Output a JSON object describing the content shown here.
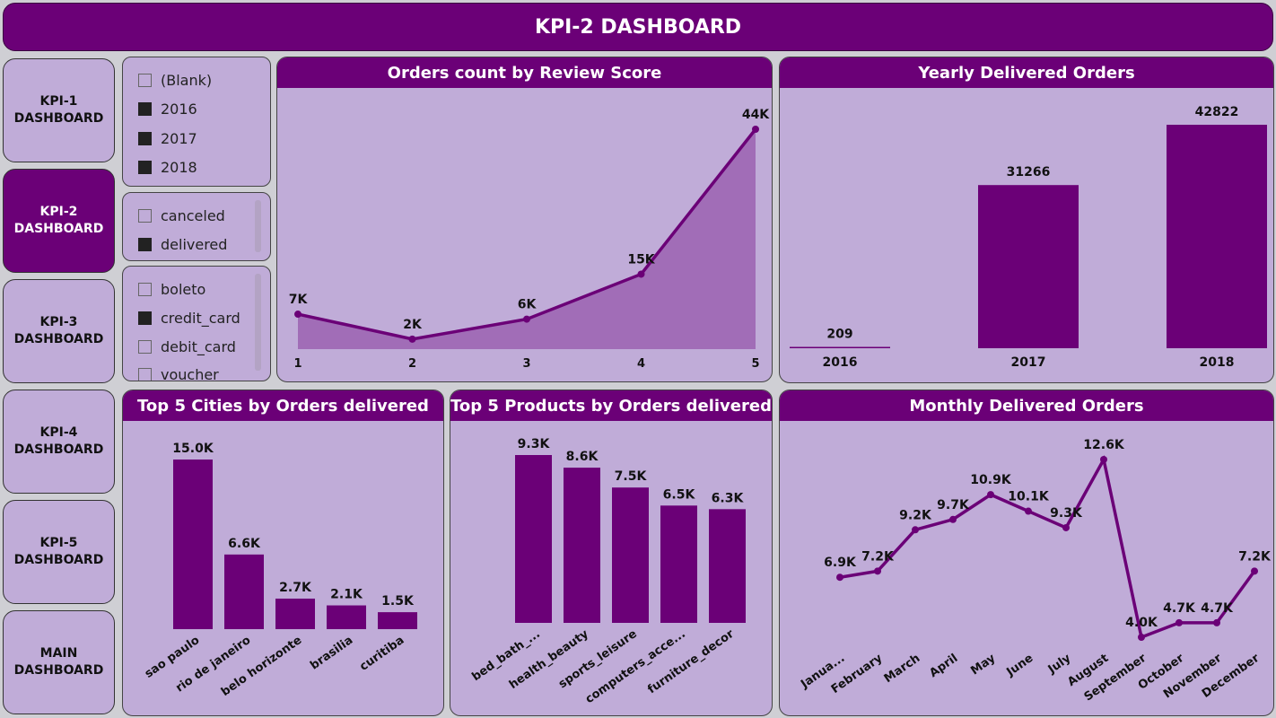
{
  "title": "KPI-2 DASHBOARD",
  "nav": [
    {
      "label": "KPI-1\nDASHBOARD",
      "active": false
    },
    {
      "label": "KPI-2\nDASHBOARD",
      "active": true
    },
    {
      "label": "KPI-3\nDASHBOARD",
      "active": false
    },
    {
      "label": "KPI-4\nDASHBOARD",
      "active": false
    },
    {
      "label": "KPI-5\nDASHBOARD",
      "active": false
    },
    {
      "label": "MAIN\nDASHBOARD",
      "active": false
    }
  ],
  "filters": {
    "year": [
      {
        "label": "(Blank)",
        "checked": false
      },
      {
        "label": "2016",
        "checked": true
      },
      {
        "label": "2017",
        "checked": true
      },
      {
        "label": "2018",
        "checked": true
      }
    ],
    "status": [
      {
        "label": "canceled",
        "checked": false
      },
      {
        "label": "delivered",
        "checked": true
      }
    ],
    "payment": [
      {
        "label": "boleto",
        "checked": false
      },
      {
        "label": "credit_card",
        "checked": true
      },
      {
        "label": "debit_card",
        "checked": false
      },
      {
        "label": "voucher",
        "checked": false
      }
    ]
  },
  "panels": {
    "review": {
      "title": "Orders count by Review Score"
    },
    "yearly": {
      "title": "Yearly Delivered Orders"
    },
    "cities": {
      "title": "Top 5 Cities by Orders delivered"
    },
    "products": {
      "title": "Top 5 Products by Orders delivered"
    },
    "monthly": {
      "title": "Monthly Delivered Orders"
    }
  },
  "colors": {
    "accent": "#6b0077",
    "panel_bg": "#c0acd8",
    "area_fill": "#9b62b1"
  },
  "chart_data": [
    {
      "id": "review",
      "type": "area",
      "title": "Orders count by Review Score",
      "x": [
        "1",
        "2",
        "3",
        "4",
        "5"
      ],
      "values": [
        7000,
        2000,
        6000,
        15000,
        44000
      ],
      "labels": [
        "7K",
        "2K",
        "6K",
        "15K",
        "44K"
      ]
    },
    {
      "id": "yearly",
      "type": "bar",
      "title": "Yearly Delivered Orders",
      "categories": [
        "2016",
        "2017",
        "2018"
      ],
      "values": [
        209,
        31266,
        42822
      ],
      "labels": [
        "209",
        "31266",
        "42822"
      ]
    },
    {
      "id": "cities",
      "type": "bar",
      "title": "Top 5 Cities by Orders delivered",
      "categories": [
        "sao paulo",
        "rio de janeiro",
        "belo horizonte",
        "brasilia",
        "curitiba"
      ],
      "values": [
        15000,
        6600,
        2700,
        2100,
        1500
      ],
      "labels": [
        "15.0K",
        "6.6K",
        "2.7K",
        "2.1K",
        "1.5K"
      ]
    },
    {
      "id": "products",
      "type": "bar",
      "title": "Top 5 Products by Orders delivered",
      "categories": [
        "bed_bath_...",
        "health_beauty",
        "sports_leisure",
        "computers_acce...",
        "furniture_decor"
      ],
      "values": [
        9300,
        8600,
        7500,
        6500,
        6300
      ],
      "labels": [
        "9.3K",
        "8.6K",
        "7.5K",
        "6.5K",
        "6.3K"
      ]
    },
    {
      "id": "monthly",
      "type": "line",
      "title": "Monthly Delivered Orders",
      "x": [
        "Janua...",
        "February",
        "March",
        "April",
        "May",
        "June",
        "July",
        "August",
        "September",
        "October",
        "November",
        "December"
      ],
      "values": [
        6900,
        7200,
        9200,
        9700,
        10900,
        10100,
        9300,
        12600,
        4000,
        4700,
        4700,
        7200
      ],
      "labels": [
        "6.9K",
        "7.2K",
        "9.2K",
        "9.7K",
        "10.9K",
        "10.1K",
        "9.3K",
        "12.6K",
        "4.0K",
        "4.7K",
        "4.7K",
        "7.2K"
      ]
    }
  ]
}
